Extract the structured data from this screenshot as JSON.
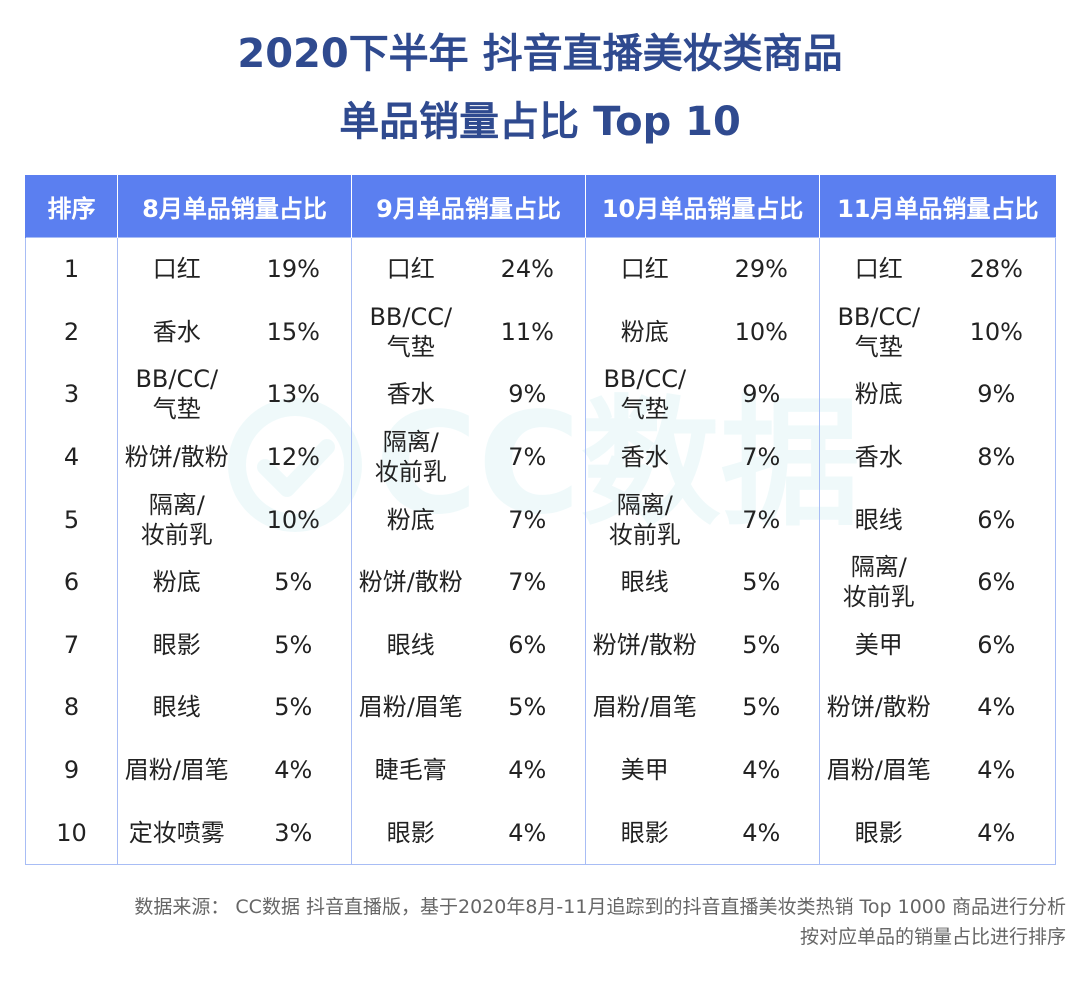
{
  "title": {
    "line1": "2020下半年 抖音直播美妆类商品",
    "line2": "单品销量占比 Top 10"
  },
  "watermark": {
    "text": "CC数据"
  },
  "table": {
    "headers": [
      "排序",
      "8月单品销量占比",
      "9月单品销量占比",
      "10月单品销量占比",
      "11月单品销量占比"
    ],
    "rows": [
      {
        "rank": "1",
        "m8": {
          "item": "口红",
          "pct": "19%"
        },
        "m9": {
          "item": "口红",
          "pct": "24%"
        },
        "m10": {
          "item": "口红",
          "pct": "29%"
        },
        "m11": {
          "item": "口红",
          "pct": "28%"
        }
      },
      {
        "rank": "2",
        "m8": {
          "item": "香水",
          "pct": "15%"
        },
        "m9": {
          "item": "BB/CC/\n气垫",
          "pct": "11%"
        },
        "m10": {
          "item": "粉底",
          "pct": "10%"
        },
        "m11": {
          "item": "BB/CC/\n气垫",
          "pct": "10%"
        }
      },
      {
        "rank": "3",
        "m8": {
          "item": "BB/CC/\n气垫",
          "pct": "13%"
        },
        "m9": {
          "item": "香水",
          "pct": "9%"
        },
        "m10": {
          "item": "BB/CC/\n气垫",
          "pct": "9%"
        },
        "m11": {
          "item": "粉底",
          "pct": "9%"
        }
      },
      {
        "rank": "4",
        "m8": {
          "item": "粉饼/散粉",
          "pct": "12%"
        },
        "m9": {
          "item": "隔离/\n妆前乳",
          "pct": "7%"
        },
        "m10": {
          "item": "香水",
          "pct": "7%"
        },
        "m11": {
          "item": "香水",
          "pct": "8%"
        }
      },
      {
        "rank": "5",
        "m8": {
          "item": "隔离/\n妆前乳",
          "pct": "10%"
        },
        "m9": {
          "item": "粉底",
          "pct": "7%"
        },
        "m10": {
          "item": "隔离/\n妆前乳",
          "pct": "7%"
        },
        "m11": {
          "item": "眼线",
          "pct": "6%"
        }
      },
      {
        "rank": "6",
        "m8": {
          "item": "粉底",
          "pct": "5%"
        },
        "m9": {
          "item": "粉饼/散粉",
          "pct": "7%"
        },
        "m10": {
          "item": "眼线",
          "pct": "5%"
        },
        "m11": {
          "item": "隔离/\n妆前乳",
          "pct": "6%"
        }
      },
      {
        "rank": "7",
        "m8": {
          "item": "眼影",
          "pct": "5%"
        },
        "m9": {
          "item": "眼线",
          "pct": "6%"
        },
        "m10": {
          "item": "粉饼/散粉",
          "pct": "5%"
        },
        "m11": {
          "item": "美甲",
          "pct": "6%"
        }
      },
      {
        "rank": "8",
        "m8": {
          "item": "眼线",
          "pct": "5%"
        },
        "m9": {
          "item": "眉粉/眉笔",
          "pct": "5%"
        },
        "m10": {
          "item": "眉粉/眉笔",
          "pct": "5%"
        },
        "m11": {
          "item": "粉饼/散粉",
          "pct": "4%"
        }
      },
      {
        "rank": "9",
        "m8": {
          "item": "眉粉/眉笔",
          "pct": "4%"
        },
        "m9": {
          "item": "睫毛膏",
          "pct": "4%"
        },
        "m10": {
          "item": "美甲",
          "pct": "4%"
        },
        "m11": {
          "item": "眉粉/眉笔",
          "pct": "4%"
        }
      },
      {
        "rank": "10",
        "m8": {
          "item": "定妆喷雾",
          "pct": "3%"
        },
        "m9": {
          "item": "眼影",
          "pct": "4%"
        },
        "m10": {
          "item": "眼影",
          "pct": "4%"
        },
        "m11": {
          "item": "眼影",
          "pct": "4%"
        }
      }
    ]
  },
  "source": {
    "line1": "数据来源： CC数据 抖音直播版，基于2020年8月-11月追踪到的抖音直播美妆类热销 Top 1000 商品进行分析",
    "line2": "按对应单品的销量占比进行排序"
  }
}
